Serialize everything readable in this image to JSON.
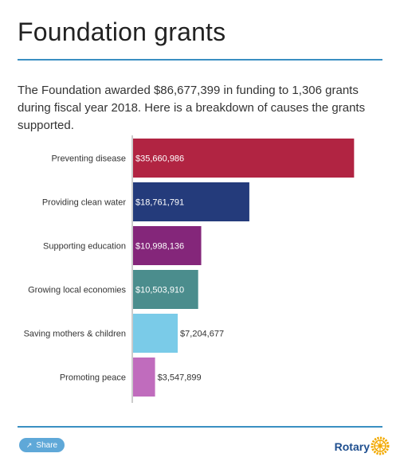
{
  "page": {
    "title": "Foundation grants",
    "description": "The Foundation awarded $86,677,399 in funding to 1,306 grants during fiscal year 2018. Here is a breakdown of causes the grants supported."
  },
  "footer": {
    "share_label": "Share",
    "brand": "Rotary",
    "share_icon": "share-icon",
    "logo_icon": "rotary-wheel-icon"
  },
  "chart_data": {
    "type": "bar",
    "orientation": "horizontal",
    "categories": [
      "Preventing disease",
      "Providing clean water",
      "Supporting education",
      "Growing local economies",
      "Saving mothers & children",
      "Promoting peace"
    ],
    "values": [
      35660986,
      18761791,
      10998136,
      10503910,
      7204677,
      3547899
    ],
    "data_labels": [
      "$35,660,986",
      "$18,761,791",
      "$10,998,136",
      "$10,503,910",
      "$7,204,677",
      "$3,547,899"
    ],
    "colors": [
      "#b12442",
      "#243b7b",
      "#84267a",
      "#4b8d8d",
      "#7acbe8",
      "#c06cbd"
    ],
    "xlim": [
      0,
      36000000
    ],
    "grid": false
  }
}
